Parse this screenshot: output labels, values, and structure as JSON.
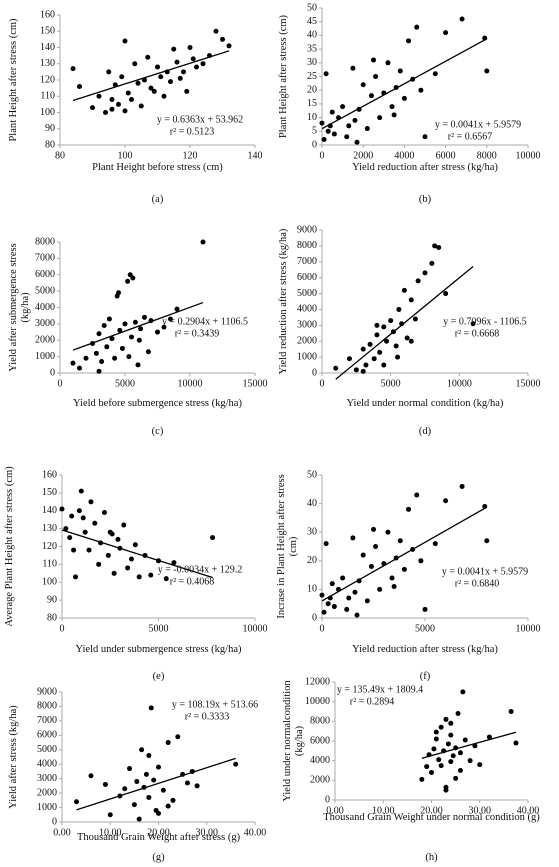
{
  "chart_data": [
    {
      "type": "scatter",
      "x_label": "Plant Height before stress (cm)",
      "y_label": "Plant Height after stress (cm)",
      "caption": "(a)",
      "equation": "y = 0.6363x + 53.962",
      "r2": "r² = 0.5123",
      "xlim": [
        80,
        140
      ],
      "xticks": [
        80,
        100,
        120,
        140
      ],
      "ylim": [
        80,
        160
      ],
      "yticks": [
        80,
        90,
        100,
        110,
        120,
        130,
        140,
        150,
        160
      ],
      "color": "#000000",
      "x": [
        84,
        86,
        90,
        92,
        94,
        95,
        96,
        97,
        98,
        99,
        100,
        101,
        102,
        103,
        104,
        105,
        106,
        107,
        108,
        109,
        110,
        111,
        112,
        113,
        114,
        115,
        116,
        118,
        120,
        122,
        124,
        126,
        128,
        130,
        132,
        117,
        119,
        121,
        100,
        96
      ],
      "y": [
        127,
        116,
        103,
        110,
        100,
        125,
        108,
        117,
        105,
        122,
        144,
        112,
        108,
        130,
        118,
        104,
        120,
        134,
        115,
        113,
        128,
        122,
        110,
        125,
        119,
        139,
        131,
        125,
        140,
        128,
        130,
        135,
        150,
        145,
        141,
        121,
        113,
        133,
        101,
        102
      ]
    },
    {
      "type": "scatter",
      "x_label": "Yield reduction after stress (kg/ha)",
      "y_label": "Plant Height after stress (cm)",
      "caption": "(b)",
      "equation": "y = 0.0041x + 5.9579",
      "r2": "r² = 0.6567",
      "xlim": [
        0,
        10000
      ],
      "xticks": [
        0,
        2000,
        4000,
        6000,
        8000,
        10000
      ],
      "ylim": [
        0,
        50
      ],
      "yticks": [
        0,
        5,
        10,
        15,
        20,
        25,
        30,
        35,
        40,
        45,
        50
      ],
      "color": "#000000",
      "x": [
        0,
        100,
        200,
        300,
        400,
        600,
        800,
        1000,
        1200,
        1500,
        1600,
        1800,
        2000,
        2200,
        2400,
        2600,
        2800,
        3000,
        3200,
        3400,
        3600,
        3800,
        4000,
        4200,
        4400,
        4600,
        4800,
        5000,
        5500,
        6000,
        6800,
        7900,
        8000,
        1300,
        2500,
        3500,
        500,
        1700
      ],
      "y": [
        8,
        2,
        26,
        5,
        7,
        4,
        10,
        14,
        3,
        28,
        9,
        13,
        22,
        6,
        18,
        25,
        10,
        19,
        30,
        14,
        21,
        27,
        17,
        38,
        24,
        43,
        20,
        3,
        26,
        41,
        46,
        39,
        27,
        7,
        31,
        11,
        12,
        1
      ]
    },
    {
      "type": "scatter",
      "x_label": "Yield before submergence stress (kg/ha)",
      "y_label": "Yield after submergence stress (kg/ha)",
      "caption": "(c)",
      "equation": "y = 0.2904x + 1106.5",
      "r2": "r² = 0.3439",
      "xlim": [
        0,
        15000
      ],
      "xticks": [
        0,
        5000,
        10000,
        15000
      ],
      "ylim": [
        0,
        8000
      ],
      "yticks": [
        0,
        1000,
        2000,
        3000,
        4000,
        5000,
        6000,
        7000,
        8000
      ],
      "color": "#000000",
      "x": [
        1000,
        1500,
        2000,
        2500,
        2800,
        3000,
        3200,
        3400,
        3600,
        3800,
        4000,
        4200,
        4400,
        4600,
        4800,
        5000,
        5200,
        5400,
        5500,
        5600,
        5800,
        6000,
        6200,
        6500,
        6800,
        7000,
        7500,
        8000,
        8500,
        9000,
        11000,
        3000,
        4500,
        5300,
        6100
      ],
      "y": [
        600,
        300,
        900,
        1800,
        1200,
        2400,
        700,
        2900,
        1600,
        3300,
        2100,
        900,
        4700,
        2600,
        1500,
        3000,
        5600,
        6000,
        2200,
        5800,
        3100,
        500,
        2700,
        3400,
        1300,
        3200,
        2500,
        2800,
        3300,
        3900,
        8000,
        100,
        4900,
        1000,
        2000
      ]
    },
    {
      "type": "scatter",
      "x_label": "Yield under normal condition (kg/ha)",
      "y_label": "Yield reduction after stress (kg/ha)",
      "caption": "(d)",
      "equation": "y = 0.7096x - 1106.5",
      "r2": "r² = 0.6668",
      "xlim": [
        0,
        15000
      ],
      "xticks": [
        0,
        5000,
        10000,
        15000
      ],
      "ylim": [
        0,
        9000
      ],
      "yticks": [
        0,
        1000,
        2000,
        3000,
        4000,
        5000,
        6000,
        7000,
        8000,
        9000
      ],
      "color": "#000000",
      "x": [
        1000,
        2000,
        2500,
        3000,
        3200,
        3500,
        3800,
        4000,
        4200,
        4500,
        4700,
        5000,
        5200,
        5400,
        5600,
        5800,
        6000,
        6200,
        6500,
        6800,
        7000,
        7500,
        8000,
        8200,
        8500,
        9000,
        11000,
        3000,
        4500,
        5500,
        6500,
        4000
      ],
      "y": [
        300,
        900,
        200,
        1500,
        500,
        1800,
        900,
        2400,
        1300,
        2900,
        2000,
        3300,
        2600,
        1700,
        4000,
        3100,
        5200,
        2200,
        4600,
        3400,
        5800,
        6300,
        6900,
        8000,
        7900,
        5000,
        3100,
        100,
        500,
        1000,
        2000,
        3000
      ]
    },
    {
      "type": "scatter",
      "x_label": "Yield under submergence stress (kg/ha)",
      "y_label": "Average Plant Height after stress (cm)",
      "caption": "(e)",
      "equation": "y = -0.0034x + 129.2",
      "r2": "r² = 0.4068",
      "xlim": [
        0,
        10000
      ],
      "xticks": [
        0,
        5000,
        10000
      ],
      "ylim": [
        80,
        160
      ],
      "yticks": [
        80,
        90,
        100,
        110,
        120,
        130,
        140,
        150,
        160
      ],
      "color": "#000000",
      "x": [
        0,
        200,
        400,
        500,
        700,
        900,
        1000,
        1200,
        1400,
        1500,
        1700,
        1900,
        2000,
        2200,
        2400,
        2500,
        2700,
        2900,
        3000,
        3200,
        3400,
        3600,
        3800,
        4000,
        4300,
        4600,
        5000,
        5400,
        5800,
        7800,
        600,
        1100,
        2600
      ],
      "y": [
        141,
        130,
        125,
        137,
        103,
        140,
        151,
        128,
        118,
        145,
        133,
        110,
        122,
        139,
        115,
        128,
        105,
        124,
        119,
        132,
        108,
        113,
        121,
        103,
        115,
        104,
        112,
        102,
        111,
        125,
        118,
        136,
        127
      ]
    },
    {
      "type": "scatter",
      "x_label": "Yield reduction after stress (kg/ha)",
      "y_label": "Incrase in Plant Height after stress (cm)",
      "caption": "(f)",
      "equation": "y = 0.0041x + 5.9579",
      "r2": "r² = 0.6840",
      "xlim": [
        0,
        10000
      ],
      "xticks": [
        0,
        5000,
        10000
      ],
      "ylim": [
        0,
        50
      ],
      "yticks": [
        0,
        10,
        20,
        30,
        40,
        50
      ],
      "color": "#000000",
      "x": [
        0,
        100,
        200,
        300,
        400,
        600,
        800,
        1000,
        1200,
        1500,
        1600,
        1800,
        2000,
        2200,
        2400,
        2600,
        2800,
        3000,
        3200,
        3400,
        3600,
        3800,
        4000,
        4200,
        4400,
        4600,
        4800,
        5000,
        5500,
        6000,
        6800,
        7900,
        8000,
        1300,
        2500,
        3500,
        500,
        1700
      ],
      "y": [
        8,
        2,
        26,
        5,
        7,
        4,
        10,
        14,
        3,
        28,
        9,
        13,
        22,
        6,
        18,
        25,
        10,
        19,
        30,
        14,
        21,
        27,
        17,
        38,
        24,
        43,
        20,
        3,
        26,
        41,
        46,
        39,
        27,
        7,
        31,
        11,
        12,
        1
      ]
    },
    {
      "type": "scatter",
      "x_label": "Thousand Grain Weight after stress (g)",
      "y_label": "Yield after stress (kg/ha)",
      "caption": "(g)",
      "equation": "y = 108.19x + 513.66",
      "r2": "r² = 0.3333",
      "xlim": [
        0,
        40
      ],
      "xticks": [
        {
          "value": 0,
          "label": "0.00"
        },
        {
          "value": 10,
          "label": "10.00"
        },
        {
          "value": 20,
          "label": "20.00"
        },
        {
          "value": 30,
          "label": "30.00"
        },
        {
          "value": 40,
          "label": "40.00"
        }
      ],
      "ylim": [
        0,
        9000
      ],
      "yticks": [
        0,
        1000,
        2000,
        3000,
        4000,
        5000,
        6000,
        7000,
        8000,
        9000
      ],
      "color": "#000000",
      "x": [
        3,
        6,
        9,
        10,
        12,
        13,
        14,
        15,
        15.5,
        16,
        16.5,
        17,
        17.5,
        18,
        18.5,
        19,
        19.5,
        20,
        21,
        22,
        23,
        24,
        25,
        26,
        27,
        28,
        36,
        18,
        20,
        22
      ],
      "y": [
        1400,
        3200,
        2600,
        500,
        1800,
        2300,
        3700,
        1200,
        2800,
        200,
        5000,
        2400,
        3300,
        1700,
        7900,
        2900,
        800,
        3800,
        2200,
        5500,
        1500,
        5900,
        3300,
        2700,
        3500,
        2500,
        4000,
        4600,
        600,
        1100
      ]
    },
    {
      "type": "scatter",
      "x_label": "Thousand Grain Weight under normal condition (g)",
      "y_label": "Yield under normalcondition (kg/ha)",
      "caption": "(h)",
      "equation": "y = 135.49x + 1809.4",
      "r2": "r² = 0.2894",
      "xlim": [
        0,
        40
      ],
      "xticks": [
        {
          "value": 0,
          "label": "0.00"
        },
        {
          "value": 10,
          "label": "10.00"
        },
        {
          "value": 20,
          "label": "20.00"
        },
        {
          "value": 30,
          "label": "30.00"
        },
        {
          "value": 40,
          "label": "40.00"
        }
      ],
      "ylim": [
        0,
        12000
      ],
      "yticks": [
        0,
        2000,
        4000,
        6000,
        8000,
        10000,
        12000
      ],
      "color": "#000000",
      "x": [
        18,
        19,
        19.5,
        20,
        20.5,
        21,
        21.5,
        22,
        22,
        22.5,
        23,
        23,
        23.5,
        24,
        24,
        24.5,
        25,
        25,
        25.5,
        26,
        26.5,
        27,
        28,
        29,
        30,
        32,
        36.5,
        37.5,
        23,
        21,
        24,
        26
      ],
      "y": [
        2100,
        3400,
        4600,
        2800,
        5200,
        6200,
        4100,
        3500,
        7400,
        5000,
        8200,
        1300,
        5700,
        3900,
        6600,
        4500,
        2200,
        5300,
        8800,
        4800,
        11000,
        6100,
        4000,
        5500,
        3600,
        6400,
        9000,
        5800,
        1000,
        6900,
        7800,
        3000
      ]
    }
  ]
}
